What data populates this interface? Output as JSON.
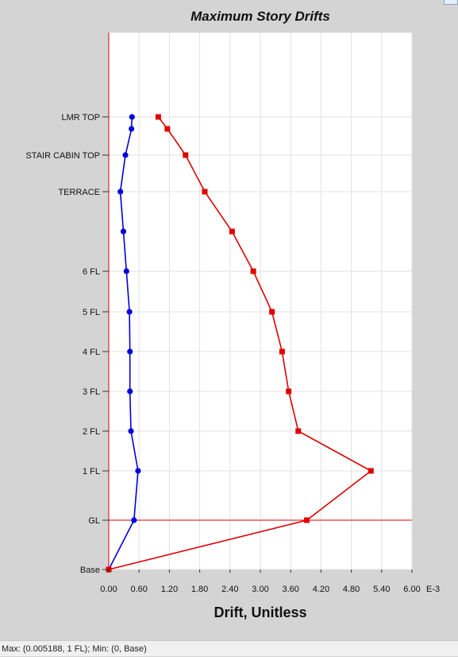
{
  "chart_data": {
    "type": "line",
    "title": "Maximum Story Drifts",
    "xlabel": "Drift, Unitless",
    "x_unit": "E-3",
    "xlim": [
      0,
      6.0
    ],
    "x_ticks": [
      "0.00",
      "0.60",
      "1.20",
      "1.80",
      "2.40",
      "3.00",
      "3.60",
      "4.20",
      "4.80",
      "5.40",
      "6.00"
    ],
    "grid": true,
    "stories": [
      "Base",
      "GL",
      "1 FL",
      "2 FL",
      "3 FL",
      "4 FL",
      "5 FL",
      "6 FL",
      "",
      "TERRACE",
      "STAIR CABIN TOP",
      "",
      "LMR TOP"
    ],
    "story_labels": [
      {
        "name": "LMR TOP",
        "y": 12
      },
      {
        "name": "STAIR CABIN TOP",
        "y": 10
      },
      {
        "name": "TERRACE",
        "y": 9
      },
      {
        "name": "6 FL",
        "y": 7
      },
      {
        "name": "5 FL",
        "y": 6
      },
      {
        "name": "4 FL",
        "y": 5
      },
      {
        "name": "3 FL",
        "y": 4
      },
      {
        "name": "2 FL",
        "y": 3
      },
      {
        "name": "1 FL",
        "y": 2
      },
      {
        "name": "GL",
        "y": 1
      },
      {
        "name": "Base",
        "y": 0
      }
    ],
    "series": [
      {
        "color": "#0000dd",
        "marker": "circle",
        "points": [
          {
            "y": 0,
            "x": 0.0
          },
          {
            "y": 1,
            "x": 0.5
          },
          {
            "y": 2,
            "x": 0.58
          },
          {
            "y": 3,
            "x": 0.44
          },
          {
            "y": 4,
            "x": 0.42
          },
          {
            "y": 5,
            "x": 0.42
          },
          {
            "y": 6,
            "x": 0.41
          },
          {
            "y": 7,
            "x": 0.35
          },
          {
            "y": 8,
            "x": 0.29
          },
          {
            "y": 9,
            "x": 0.23
          },
          {
            "y": 10,
            "x": 0.33
          },
          {
            "y": 11,
            "x": 0.45
          },
          {
            "y": 12,
            "x": 0.46
          }
        ]
      },
      {
        "color": "#e00000",
        "marker": "square",
        "points": [
          {
            "y": 0,
            "x": 0.0
          },
          {
            "y": 1,
            "x": 3.92
          },
          {
            "y": 2,
            "x": 5.188
          },
          {
            "y": 3,
            "x": 3.75
          },
          {
            "y": 4,
            "x": 3.56
          },
          {
            "y": 5,
            "x": 3.43
          },
          {
            "y": 6,
            "x": 3.23
          },
          {
            "y": 7,
            "x": 2.86
          },
          {
            "y": 8,
            "x": 2.44
          },
          {
            "y": 9,
            "x": 1.9
          },
          {
            "y": 10,
            "x": 1.52
          },
          {
            "y": 11,
            "x": 1.16
          },
          {
            "y": 12,
            "x": 0.98
          }
        ]
      }
    ],
    "reference_line_story": 1
  },
  "status": {
    "text": "Max: (0.005188, 1 FL);   Min: (0, Base)"
  }
}
